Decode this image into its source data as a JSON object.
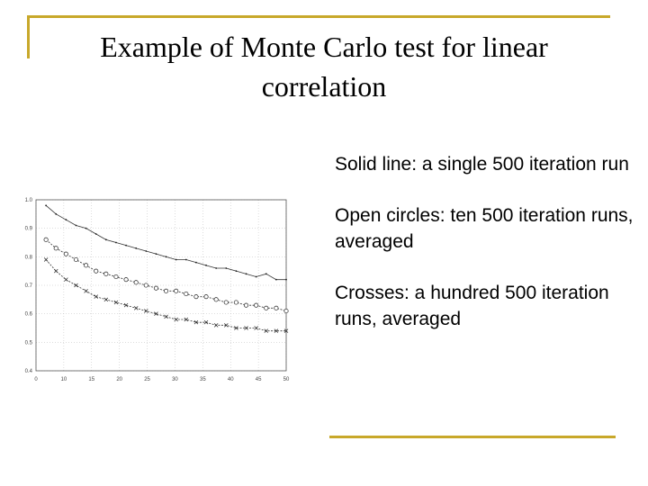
{
  "slide": {
    "title": "Example of Monte Carlo test for linear correlation",
    "bullets": [
      "Solid line: a single 500 iteration run",
      "Open circles: ten 500 iteration runs, averaged",
      "Crosses: a hundred 500 iteration runs, averaged"
    ]
  },
  "colors": {
    "accent": "#c8a82a",
    "text": "#000000"
  },
  "chart_data": {
    "type": "line",
    "title": "",
    "xlabel": "",
    "ylabel": "",
    "xlim": [
      0,
      50
    ],
    "ylim": [
      0.4,
      1.0
    ],
    "x_ticks": [
      "0",
      "10",
      "15",
      "20",
      "25",
      "30",
      "35",
      "40",
      "45",
      "50"
    ],
    "y_ticks": [
      "0.4",
      "0.5",
      "0.6",
      "0.7",
      "0.8",
      "0.9",
      "1.0"
    ],
    "grid": true,
    "series": [
      {
        "marker": "line",
        "x": [
          2,
          4,
          6,
          8,
          10,
          12,
          14,
          16,
          18,
          20,
          22,
          24,
          26,
          28,
          30,
          32,
          34,
          36,
          38,
          40,
          42,
          44,
          46,
          48,
          50
        ],
        "y": [
          0.98,
          0.95,
          0.93,
          0.91,
          0.9,
          0.88,
          0.86,
          0.85,
          0.84,
          0.83,
          0.82,
          0.81,
          0.8,
          0.79,
          0.79,
          0.78,
          0.77,
          0.76,
          0.76,
          0.75,
          0.74,
          0.73,
          0.74,
          0.72,
          0.72
        ]
      },
      {
        "marker": "open-circle",
        "x": [
          2,
          4,
          6,
          8,
          10,
          12,
          14,
          16,
          18,
          20,
          22,
          24,
          26,
          28,
          30,
          32,
          34,
          36,
          38,
          40,
          42,
          44,
          46,
          48,
          50
        ],
        "y": [
          0.86,
          0.83,
          0.81,
          0.79,
          0.77,
          0.75,
          0.74,
          0.73,
          0.72,
          0.71,
          0.7,
          0.69,
          0.68,
          0.68,
          0.67,
          0.66,
          0.66,
          0.65,
          0.64,
          0.64,
          0.63,
          0.63,
          0.62,
          0.62,
          0.61
        ]
      },
      {
        "marker": "cross",
        "x": [
          2,
          4,
          6,
          8,
          10,
          12,
          14,
          16,
          18,
          20,
          22,
          24,
          26,
          28,
          30,
          32,
          34,
          36,
          38,
          40,
          42,
          44,
          46,
          48,
          50
        ],
        "y": [
          0.79,
          0.75,
          0.72,
          0.7,
          0.68,
          0.66,
          0.65,
          0.64,
          0.63,
          0.62,
          0.61,
          0.6,
          0.59,
          0.58,
          0.58,
          0.57,
          0.57,
          0.56,
          0.56,
          0.55,
          0.55,
          0.55,
          0.54,
          0.54,
          0.54
        ]
      }
    ]
  }
}
